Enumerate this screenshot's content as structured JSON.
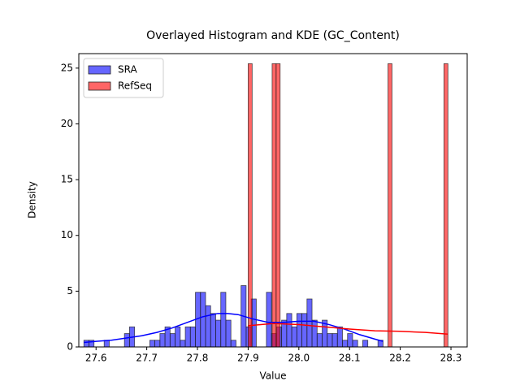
{
  "chart_data": {
    "type": "histogram",
    "title": "Overlayed Histogram and KDE (GC_Content)",
    "xlabel": "Value",
    "ylabel": "Density",
    "xlim": [
      27.566,
      28.332
    ],
    "ylim": [
      0,
      26.3
    ],
    "xticks": [
      27.6,
      27.7,
      27.8,
      27.9,
      {
        "value": 28,
        "label": "28.0"
      },
      28.1,
      28.2,
      28.3
    ],
    "yticks": [
      0,
      5,
      10,
      15,
      20,
      25
    ],
    "legend": "upper left",
    "series": [
      {
        "name": "SRA",
        "color": "blue",
        "bins": [
          27.576,
          27.586,
          27.596,
          27.606,
          27.616,
          27.626,
          27.636,
          27.646,
          27.656,
          27.666,
          27.676,
          27.686,
          27.696,
          27.706,
          27.716,
          27.726,
          27.736,
          27.746,
          27.756,
          27.766,
          27.776,
          27.786,
          27.796,
          27.806,
          27.816,
          27.826,
          27.836,
          27.846,
          27.856,
          27.866,
          27.876,
          27.886,
          27.896,
          27.906,
          27.916,
          27.926,
          27.936,
          27.946,
          27.956,
          27.966,
          27.976,
          27.986,
          27.996,
          28.006,
          28.016,
          28.026,
          28.036,
          28.046,
          28.056,
          28.066,
          28.076,
          28.086,
          28.096,
          28.106,
          28.116,
          28.126,
          28.136,
          28.146,
          28.156,
          28.166
        ],
        "values": [
          0.6,
          0.6,
          0,
          0,
          0.6,
          0,
          0,
          0,
          1.2,
          1.8,
          0,
          0,
          0,
          0.6,
          0.6,
          1.2,
          1.8,
          1.2,
          1.8,
          0.6,
          1.8,
          1.8,
          4.9,
          4.9,
          3.7,
          3.0,
          2.4,
          4.9,
          2.4,
          0.6,
          0,
          5.5,
          1.8,
          4.3,
          0,
          0,
          4.9,
          1.2,
          1.8,
          2.4,
          3.0,
          1.8,
          3.0,
          3.0,
          4.3,
          2.4,
          1.2,
          2.4,
          1.2,
          1.2,
          1.8,
          0.6,
          1.2,
          0.6,
          0,
          0.6,
          0,
          0,
          0.6
        ],
        "kde_x": [
          27.576,
          27.6,
          27.63,
          27.66,
          27.69,
          27.72,
          27.75,
          27.78,
          27.81,
          27.84,
          27.86,
          27.88,
          27.91,
          27.94,
          27.97,
          28.0,
          28.03,
          28.06,
          28.09,
          28.12,
          28.15,
          28.166
        ],
        "kde_y": [
          0.4,
          0.5,
          0.6,
          0.8,
          1.0,
          1.3,
          1.7,
          2.2,
          2.7,
          3.0,
          3.0,
          2.9,
          2.5,
          2.2,
          2.2,
          2.3,
          2.3,
          2.0,
          1.6,
          1.1,
          0.7,
          0.5
        ]
      },
      {
        "name": "RefSeq",
        "color": "red",
        "bins": [
          27.9,
          27.90788,
          27.91576,
          27.92364,
          27.93152,
          27.9394,
          27.94728,
          27.95516,
          27.96304,
          27.97092,
          27.9788,
          27.98668,
          27.99456,
          28.00244,
          28.01032,
          28.0182,
          28.02608,
          28.03396,
          28.04184,
          28.04972,
          28.0576,
          28.06548,
          28.07336,
          28.08124,
          28.08912,
          28.097,
          28.10488,
          28.11276,
          28.12064,
          28.12852,
          28.1364,
          28.14428,
          28.15216,
          28.16004,
          28.16792,
          28.1758,
          28.18368,
          28.19156,
          28.19944,
          28.20732,
          28.2152,
          28.22308,
          28.23096,
          28.23884,
          28.24672,
          28.2546,
          28.26248,
          28.27036,
          28.27824,
          28.28612,
          28.294
        ],
        "values": [
          25.4,
          0,
          0,
          0,
          0,
          0,
          25.4,
          25.4,
          0,
          0,
          0,
          0,
          0,
          0,
          0,
          0,
          0,
          0,
          0,
          0,
          0,
          0,
          0,
          0,
          0,
          0,
          0,
          0,
          0,
          0,
          0,
          0,
          0,
          0,
          0,
          25.4,
          0,
          0,
          0,
          0,
          0,
          0,
          0,
          0,
          0,
          0,
          0,
          0,
          0,
          25.4
        ],
        "kde_x": [
          27.9,
          27.95,
          28.0,
          28.05,
          28.1,
          28.15,
          28.2,
          28.25,
          28.294
        ],
        "kde_y": [
          1.9,
          2.1,
          2.0,
          1.8,
          1.6,
          1.45,
          1.4,
          1.3,
          1.15
        ]
      }
    ]
  }
}
